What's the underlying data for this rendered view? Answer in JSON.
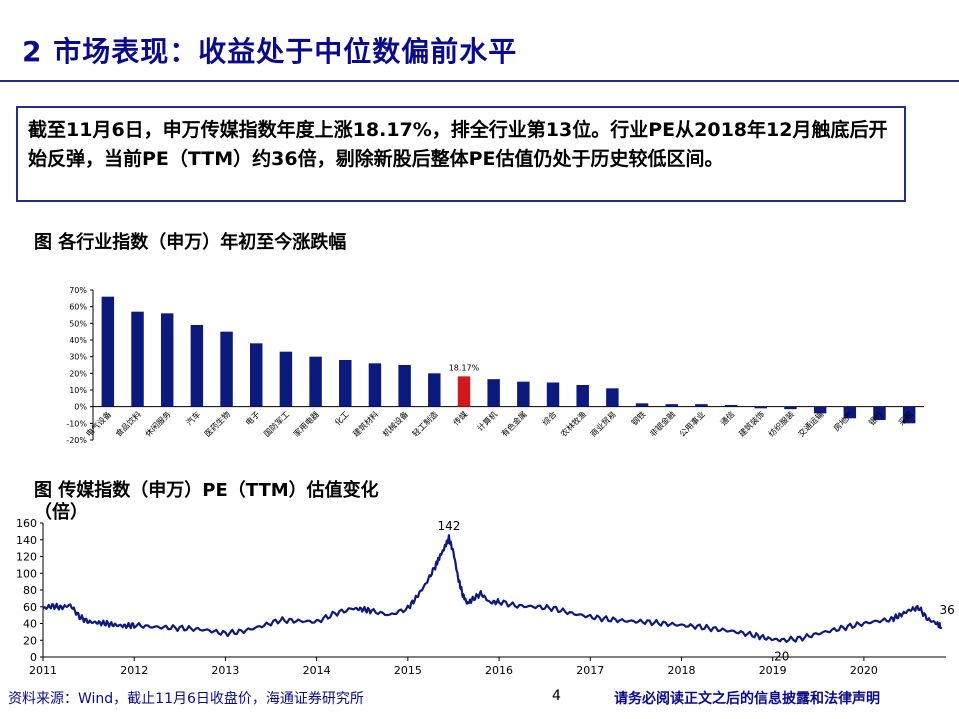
{
  "page": {
    "title": "2 市场表现：收益处于中位数偏前水平",
    "summary": "截至11月6日，申万传媒指数年度上涨18.17%，排全行业第13位。行业PE从2018年12月触底后开始反弹，当前PE（TTM）约36倍，剔除新股后整体PE估值仍处于历史较低区间。",
    "footer_source": "资料来源：Wind，截止11月6日收盘价，海通证券研究所",
    "footer_page": "4",
    "footer_disclaimer": "请务必阅读正文之后的信息披露和法律声明"
  },
  "chart_data": [
    {
      "type": "bar",
      "title": "图 各行业指数（申万）年初至今涨跌幅",
      "categories": [
        "电气设备",
        "食品饮料",
        "休闲服务",
        "汽车",
        "医药生物",
        "电子",
        "国防军工",
        "家用电器",
        "化工",
        "建筑材料",
        "机械设备",
        "轻工制造",
        "传媒",
        "计算机",
        "有色金属",
        "综合",
        "农林牧渔",
        "商业贸易",
        "钢铁",
        "非银金融",
        "公用事业",
        "通信",
        "建筑装饰",
        "纺织服装",
        "交通运输",
        "房地产",
        "银行",
        "采掘"
      ],
      "values": [
        66,
        57,
        56,
        49,
        45,
        38,
        33,
        30,
        28,
        26,
        25,
        20,
        18.17,
        16.5,
        15,
        14.5,
        13,
        11,
        2,
        1.5,
        1.5,
        1,
        -1,
        -1.5,
        -4,
        -7,
        -8,
        -10
      ],
      "highlight_category": "传媒",
      "highlight_label": "18.17%",
      "ylim": [
        -20,
        70
      ],
      "yticks": [
        "-20%",
        "-10%",
        "0%",
        "10%",
        "20%",
        "30%",
        "40%",
        "50%",
        "60%",
        "70%"
      ],
      "colors": {
        "bar": "#0d1a7d",
        "highlight": "#d0191c"
      }
    },
    {
      "type": "line",
      "title": "图 传媒指数（申万）PE（TTM）估值变化",
      "ylabel": "（倍）",
      "ylim": [
        0,
        160
      ],
      "yticks": [
        "0",
        "20",
        "40",
        "60",
        "80",
        "100",
        "120",
        "140",
        "160"
      ],
      "xticks": [
        "2011",
        "2012",
        "2013",
        "2014",
        "2015",
        "2016",
        "2017",
        "2018",
        "2019",
        "2020"
      ],
      "x": [
        2011.0,
        2011.1,
        2011.2,
        2011.3,
        2011.4,
        2011.5,
        2011.6,
        2011.7,
        2011.8,
        2011.9,
        2012.0,
        2012.2,
        2012.4,
        2012.6,
        2012.8,
        2013.0,
        2013.2,
        2013.4,
        2013.6,
        2013.8,
        2014.0,
        2014.2,
        2014.4,
        2014.5,
        2014.6,
        2014.8,
        2015.0,
        2015.1,
        2015.2,
        2015.3,
        2015.35,
        2015.4,
        2015.45,
        2015.5,
        2015.55,
        2015.6,
        2015.65,
        2015.7,
        2015.8,
        2015.9,
        2016.0,
        2016.2,
        2016.4,
        2016.6,
        2016.8,
        2017.0,
        2017.2,
        2017.4,
        2017.6,
        2017.8,
        2018.0,
        2018.2,
        2018.4,
        2018.6,
        2018.8,
        2018.95,
        2019.1,
        2019.3,
        2019.5,
        2019.7,
        2019.9,
        2020.1,
        2020.3,
        2020.4,
        2020.5,
        2020.6,
        2020.7,
        2020.8,
        2020.85
      ],
      "y": [
        58,
        61,
        59,
        62,
        48,
        42,
        41,
        40,
        38,
        37,
        38,
        36,
        35,
        34,
        32,
        28,
        31,
        37,
        44,
        43,
        42,
        52,
        58,
        57,
        55,
        50,
        58,
        72,
        88,
        108,
        120,
        130,
        142,
        125,
        95,
        75,
        64,
        68,
        76,
        65,
        66,
        61,
        60,
        58,
        52,
        48,
        45,
        43,
        42,
        40,
        38,
        36,
        33,
        30,
        26,
        22,
        20,
        22,
        28,
        33,
        38,
        42,
        45,
        50,
        56,
        59,
        45,
        40,
        36
      ],
      "annotations": [
        {
          "label": "142",
          "x": 2015.45,
          "y": 142
        },
        {
          "label": "20",
          "x": 2019.1,
          "y": 20
        },
        {
          "label": "36",
          "x": 2020.85,
          "y": 36
        }
      ],
      "colors": {
        "line": "#0d1a7d"
      }
    }
  ]
}
